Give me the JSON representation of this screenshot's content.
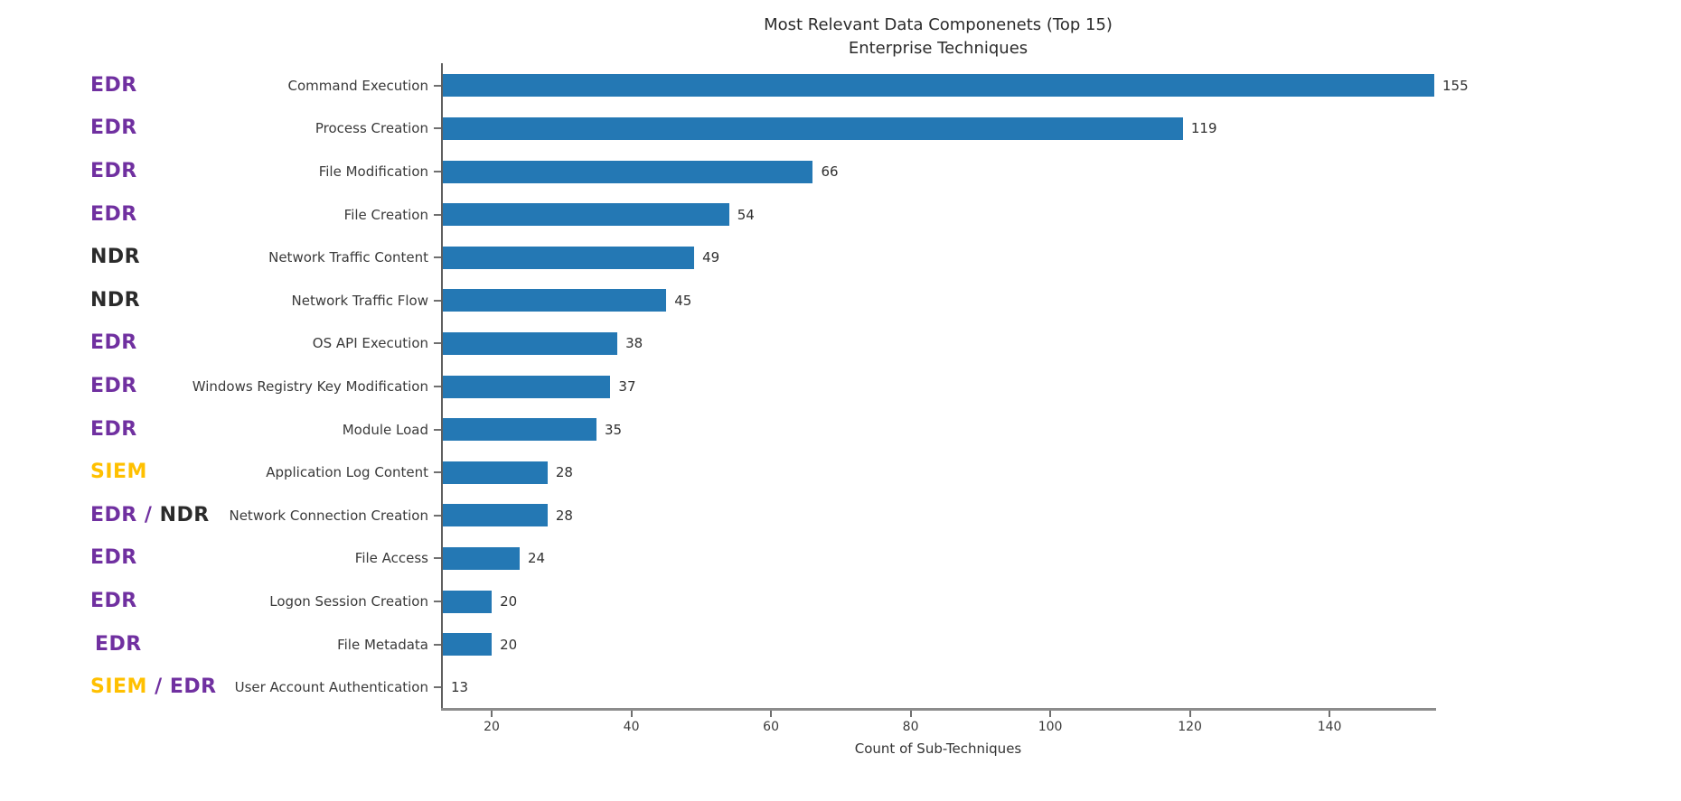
{
  "chart_data": {
    "type": "bar",
    "orientation": "horizontal",
    "title": "Most Relevant Data Componenets (Top 15)",
    "subtitle": "Enterprise Techniques",
    "xlabel": "Count of Sub-Techniques",
    "xlim": [
      13,
      155
    ],
    "xticks": [
      20,
      40,
      60,
      80,
      100,
      120,
      140
    ],
    "grid": "off",
    "bar_color": "#2478b4",
    "categories": [
      "Command Execution",
      "Process Creation",
      "File Modification",
      "File Creation",
      "Network Traffic Content",
      "Network Traffic Flow",
      "OS API Execution",
      "Windows Registry Key Modification",
      "Module Load",
      "Application Log Content",
      "Network Connection Creation",
      "File Access",
      "Logon Session Creation",
      "File Metadata",
      "User Account Authentication"
    ],
    "values": [
      155,
      119,
      66,
      54,
      49,
      45,
      38,
      37,
      35,
      28,
      28,
      24,
      20,
      20,
      13
    ],
    "annotation_colors": {
      "EDR": "#7030a0",
      "NDR": "#2b2b2b",
      "SIEM": "#ffc000"
    },
    "annotations": [
      {
        "parts": [
          {
            "text": "EDR",
            "color": "#7030a0"
          }
        ]
      },
      {
        "parts": [
          {
            "text": "EDR",
            "color": "#7030a0"
          }
        ]
      },
      {
        "parts": [
          {
            "text": "EDR",
            "color": "#7030a0"
          }
        ]
      },
      {
        "parts": [
          {
            "text": "EDR",
            "color": "#7030a0"
          }
        ]
      },
      {
        "parts": [
          {
            "text": "NDR",
            "color": "#2b2b2b"
          }
        ]
      },
      {
        "parts": [
          {
            "text": "NDR",
            "color": "#2b2b2b"
          }
        ]
      },
      {
        "parts": [
          {
            "text": "EDR",
            "color": "#7030a0"
          }
        ]
      },
      {
        "parts": [
          {
            "text": "EDR",
            "color": "#7030a0"
          }
        ]
      },
      {
        "parts": [
          {
            "text": "EDR",
            "color": "#7030a0"
          }
        ]
      },
      {
        "parts": [
          {
            "text": "SIEM",
            "color": "#ffc000"
          }
        ]
      },
      {
        "parts": [
          {
            "text": "EDR",
            "color": "#7030a0"
          },
          {
            "text": " / ",
            "color": "#7030a0"
          },
          {
            "text": "NDR",
            "color": "#2b2b2b"
          }
        ]
      },
      {
        "parts": [
          {
            "text": "EDR",
            "color": "#7030a0"
          }
        ]
      },
      {
        "parts": [
          {
            "text": "EDR",
            "color": "#7030a0"
          }
        ]
      },
      {
        "parts": [
          {
            "text": "EDR",
            "color": "#7030a0"
          }
        ],
        "indent": 5
      },
      {
        "parts": [
          {
            "text": "SIEM",
            "color": "#ffc000"
          },
          {
            "text": " / ",
            "color": "#7030a0"
          },
          {
            "text": "EDR",
            "color": "#7030a0"
          }
        ]
      }
    ]
  }
}
